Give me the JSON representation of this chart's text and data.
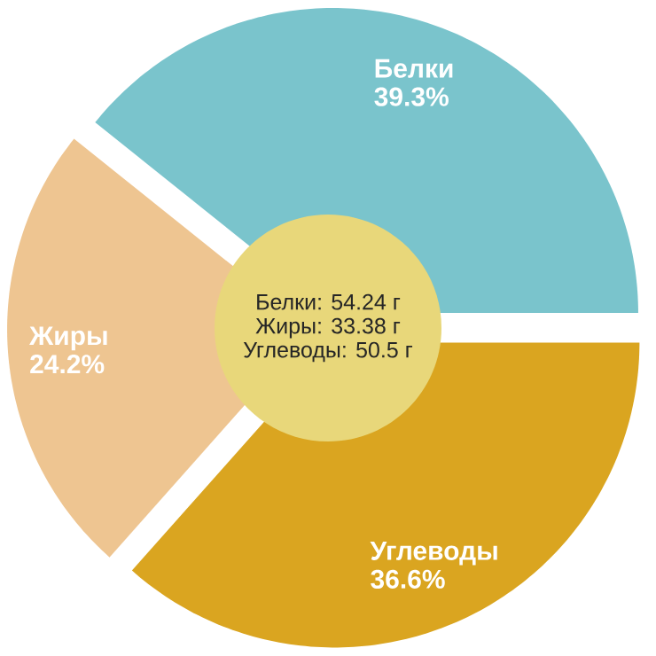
{
  "chart_data": {
    "type": "pie",
    "categories": [
      "Белки",
      "Жиры",
      "Углеводы"
    ],
    "values": [
      39.3,
      24.2,
      36.6
    ],
    "value_labels": [
      "39.3%",
      "24.2%",
      "36.6%"
    ],
    "colors": [
      "#7ac4cc",
      "#eec591",
      "#daa520"
    ],
    "annotations": [
      "Белки: 54.24 г",
      "Жиры: 33.38 г",
      "Углеводы: 50.5 г"
    ]
  }
}
